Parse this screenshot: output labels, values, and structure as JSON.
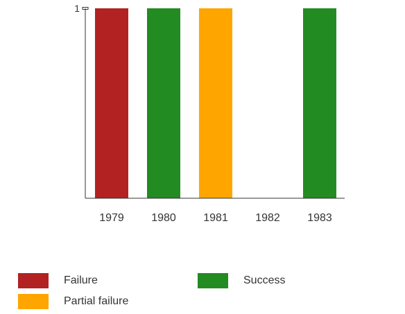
{
  "chart_data": {
    "type": "bar",
    "categories": [
      "1979",
      "1980",
      "1981",
      "1982",
      "1983"
    ],
    "series": [
      {
        "name": "Failure",
        "color": "#b22222",
        "values": [
          1,
          0,
          0,
          0,
          0
        ]
      },
      {
        "name": "Success",
        "color": "#228b22",
        "values": [
          0,
          1,
          0,
          0,
          1
        ]
      },
      {
        "name": "Partial failure",
        "color": "#ffa500",
        "values": [
          0,
          0,
          1,
          0,
          0
        ]
      }
    ],
    "ylim": [
      0,
      1
    ],
    "yticks": [
      "1"
    ],
    "title": "",
    "xlabel": "",
    "ylabel": "",
    "grid": false,
    "legend_position": "bottom"
  }
}
